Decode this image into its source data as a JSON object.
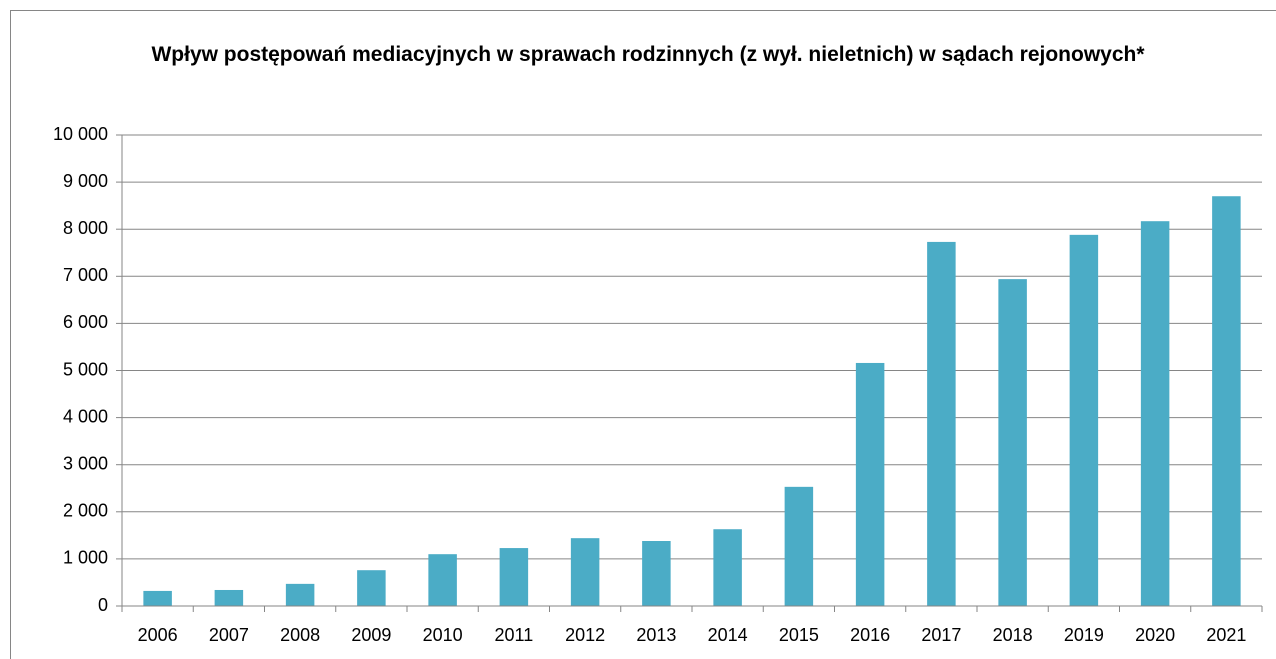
{
  "chart_data": {
    "type": "bar",
    "title": "Wpływ postępowań mediacyjnych w sprawach rodzinnych (z wył. nieletnich) w sądach rejonowych*",
    "categories": [
      "2006",
      "2007",
      "2008",
      "2009",
      "2010",
      "2011",
      "2012",
      "2013",
      "2014",
      "2015",
      "2016",
      "2017",
      "2018",
      "2019",
      "2020",
      "2021"
    ],
    "values": [
      320,
      340,
      470,
      760,
      1100,
      1230,
      1440,
      1380,
      1630,
      2530,
      5160,
      7730,
      6940,
      7880,
      8170,
      8700
    ],
    "color": "#4bacc6",
    "ylim": [
      0,
      10000
    ],
    "yticks": [
      0,
      {
        "value": 1000,
        "label": "1 000"
      },
      {
        "value": 2000,
        "label": "2 000"
      },
      {
        "value": 3000,
        "label": "3 000"
      },
      {
        "value": 4000,
        "label": "4 000"
      },
      {
        "value": 5000,
        "label": "5 000"
      },
      {
        "value": 6000,
        "label": "6 000"
      },
      {
        "value": 7000,
        "label": "7 000"
      },
      {
        "value": 8000,
        "label": "8 000"
      },
      {
        "value": 9000,
        "label": "9 000"
      },
      {
        "value": 10000,
        "label": "10 000"
      }
    ],
    "grid": true
  }
}
